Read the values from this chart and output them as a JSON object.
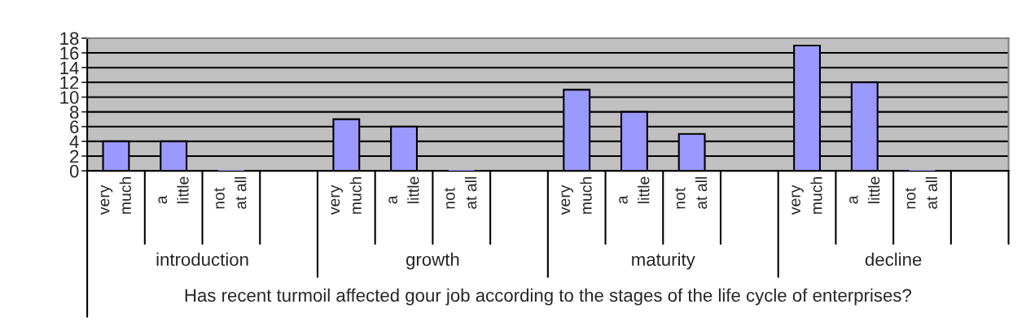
{
  "chart_data": {
    "type": "bar",
    "categories": [
      "very much",
      "a little",
      "not at all",
      null,
      "very much",
      "a little",
      "not at all",
      null,
      "very much",
      "a little",
      "not at all",
      null,
      "very much",
      "a little",
      "not at all",
      null
    ],
    "values": [
      4,
      4,
      0,
      null,
      7,
      6,
      0,
      null,
      11,
      8,
      5,
      null,
      17,
      12,
      0,
      null
    ],
    "color": "#9999ff",
    "annotations": [
      "introduction",
      "growth",
      "maturity",
      "decline"
    ],
    "xlabel": "Has recent turmoil affected gour job according to the stages of the life cycle of enterprises?",
    "ylim": [
      0,
      18
    ],
    "yticks": [
      0,
      2,
      4,
      6,
      8,
      10,
      12,
      14,
      16,
      18
    ],
    "grid": "y",
    "legend": false
  }
}
